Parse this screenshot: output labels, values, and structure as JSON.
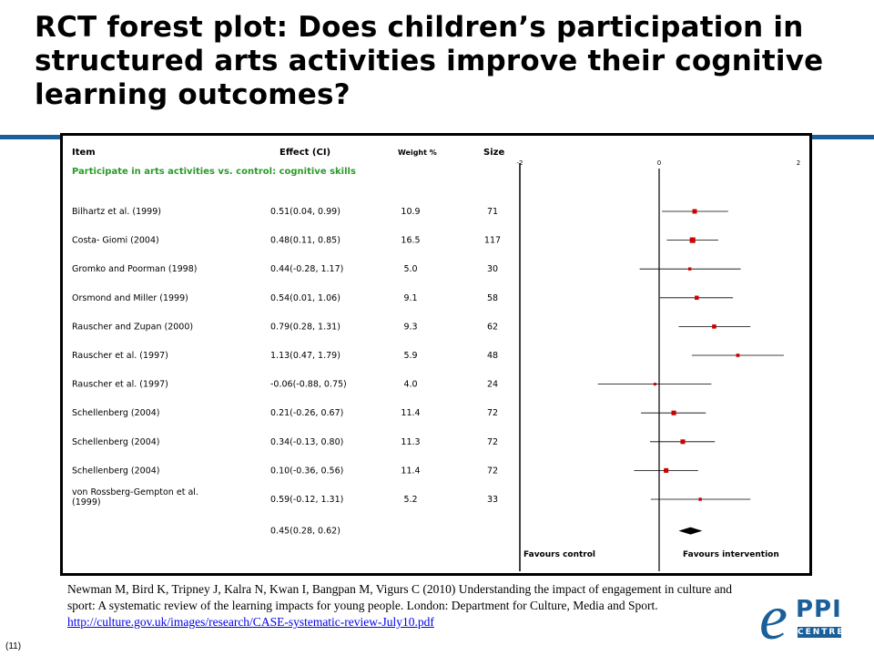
{
  "title": "RCT forest plot: Does children’s participation in structured arts activities improve their cognitive learning outcomes?",
  "slide_number": "(11)",
  "citation": {
    "text": "Newman M,  Bird K, Tripney  J, Kalra N,  Kwan I,  Bangpan M, Vigurs C (2010) Understanding the impact of engagement in culture and sport: A systematic review of the learning impacts for young people. London: Department for Culture, Media and Sport.",
    "link": "http://culture.gov.uk/images/research/CASE-systematic-review-July10.pdf"
  },
  "logo": {
    "e": "e",
    "ppi": "PPI",
    "centre": "CENTRE"
  },
  "colors": {
    "accent": "#1a5f9a",
    "marker": "#cc0000"
  },
  "chart_data": {
    "type": "forest",
    "headers": {
      "item": "Item",
      "effect": "Effect (CI)",
      "weight": "Weight %",
      "size": "Size"
    },
    "group_label": "Participate in arts activities vs. control: cognitive skills",
    "x_ticks": [
      -2,
      0,
      2
    ],
    "xlim": [
      -2,
      2
    ],
    "studies": [
      {
        "name": "Bilhartz et al. (1999)",
        "effect_text": "0.51(0.04, 0.99)",
        "weight": "10.9",
        "size": "71",
        "effect": 0.51,
        "lo": 0.04,
        "hi": 0.99
      },
      {
        "name": "Costa- Giomi (2004)",
        "effect_text": "0.48(0.11, 0.85)",
        "weight": "16.5",
        "size": "117",
        "effect": 0.48,
        "lo": 0.11,
        "hi": 0.85
      },
      {
        "name": "Gromko and Poorman (1998)",
        "effect_text": "0.44(-0.28, 1.17)",
        "weight": "5.0",
        "size": "30",
        "effect": 0.44,
        "lo": -0.28,
        "hi": 1.17
      },
      {
        "name": "Orsmond and Miller (1999)",
        "effect_text": "0.54(0.01, 1.06)",
        "weight": "9.1",
        "size": "58",
        "effect": 0.54,
        "lo": 0.01,
        "hi": 1.06
      },
      {
        "name": "Rauscher and Zupan (2000)",
        "effect_text": "0.79(0.28, 1.31)",
        "weight": "9.3",
        "size": "62",
        "effect": 0.79,
        "lo": 0.28,
        "hi": 1.31
      },
      {
        "name": "Rauscher et al. (1997)",
        "effect_text": "1.13(0.47, 1.79)",
        "weight": "5.9",
        "size": "48",
        "effect": 1.13,
        "lo": 0.47,
        "hi": 1.79
      },
      {
        "name": "Rauscher et al. (1997)",
        "effect_text": "-0.06(-0.88, 0.75)",
        "weight": "4.0",
        "size": "24",
        "effect": -0.06,
        "lo": -0.88,
        "hi": 0.75
      },
      {
        "name": "Schellenberg (2004)",
        "effect_text": "0.21(-0.26, 0.67)",
        "weight": "11.4",
        "size": "72",
        "effect": 0.21,
        "lo": -0.26,
        "hi": 0.67
      },
      {
        "name": "Schellenberg (2004)",
        "effect_text": "0.34(-0.13, 0.80)",
        "weight": "11.3",
        "size": "72",
        "effect": 0.34,
        "lo": -0.13,
        "hi": 0.8
      },
      {
        "name": "Schellenberg (2004)",
        "effect_text": "0.10(-0.36, 0.56)",
        "weight": "11.4",
        "size": "72",
        "effect": 0.1,
        "lo": -0.36,
        "hi": 0.56
      },
      {
        "name": "von Rossberg-Gempton et al. (1999)",
        "name_lines": [
          "von Rossberg-Gempton et al.",
          "(1999)"
        ],
        "effect_text": "0.59(-0.12, 1.31)",
        "weight": "5.2",
        "size": "33",
        "effect": 0.59,
        "lo": -0.12,
        "hi": 1.31
      }
    ],
    "pooled": {
      "effect_text": "0.45(0.28, 0.62)",
      "effect": 0.45,
      "lo": 0.28,
      "hi": 0.62
    },
    "footer_left": "Favours control",
    "footer_right": "Favours intervention"
  }
}
